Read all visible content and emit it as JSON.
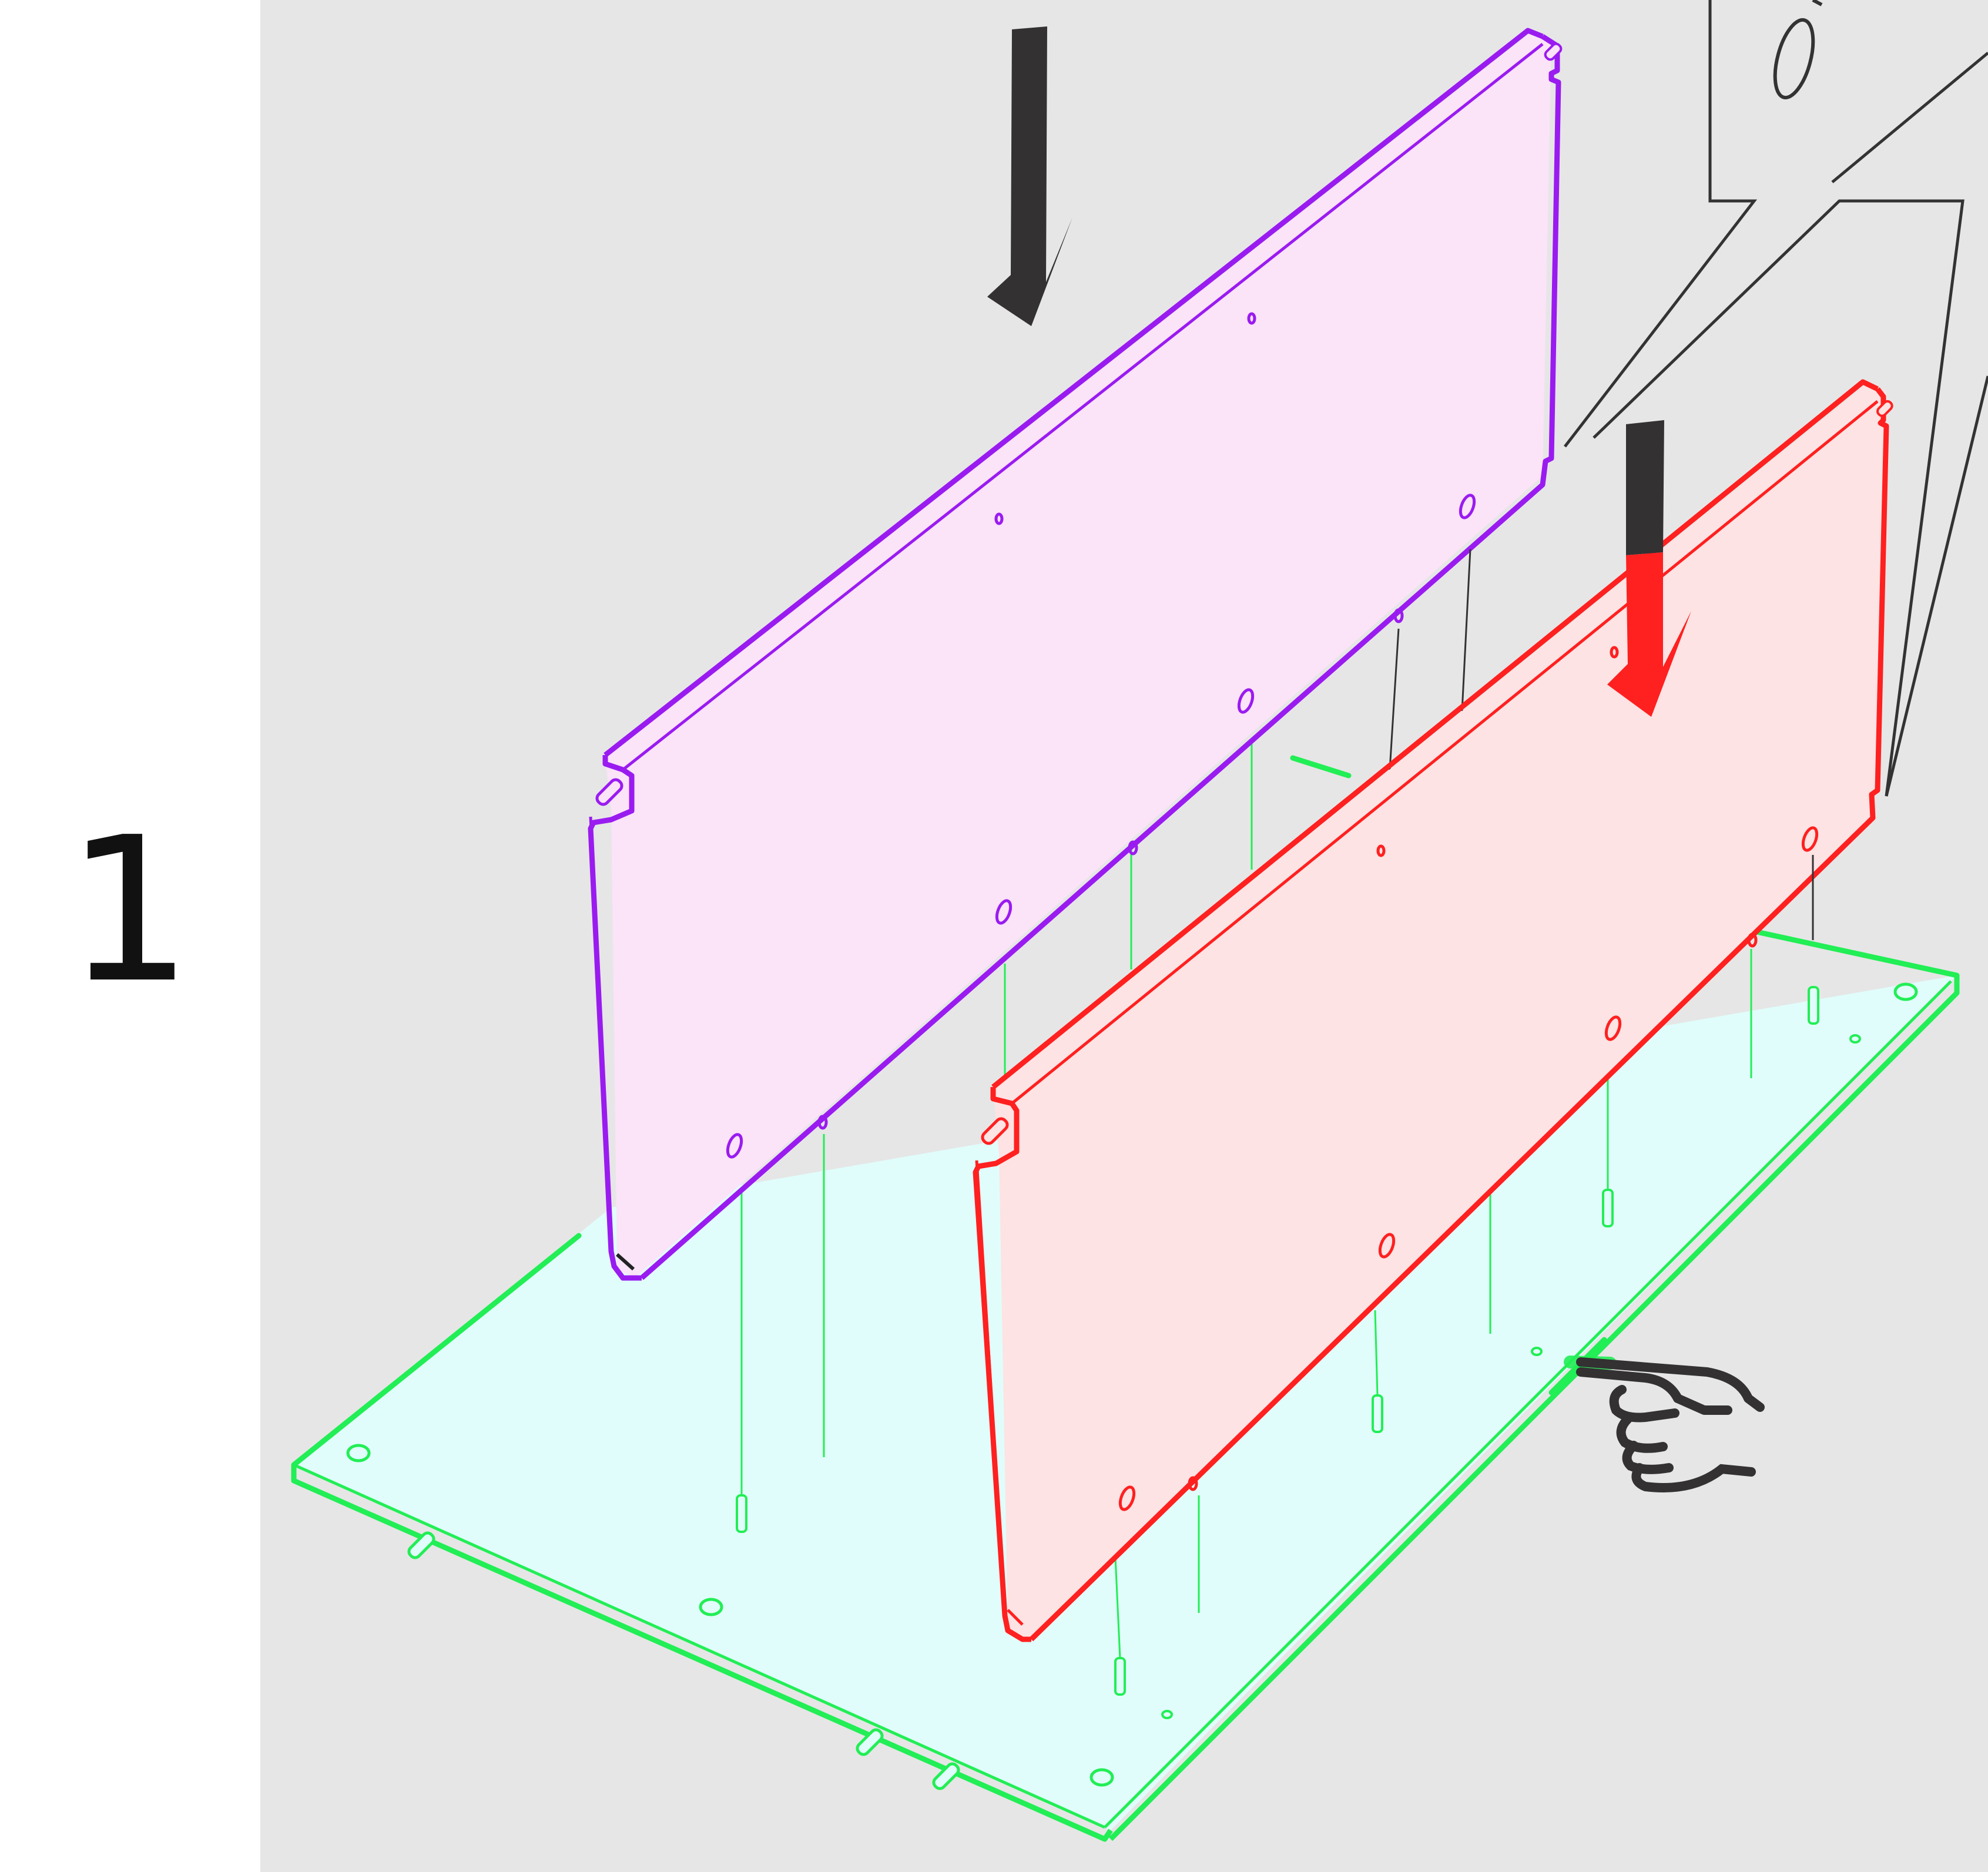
{
  "step": {
    "number": "1"
  },
  "colors": {
    "stage_background": "#e6e6e6",
    "base_panel_stroke": "#22ee55",
    "base_panel_fill": "#e0fdfb",
    "rear_panel_stroke": "#9a1bf0",
    "rear_panel_fill": "#fbe3f8",
    "front_panel_stroke": "#ff2020",
    "front_panel_fill": "#fde3e3",
    "arrow_dark": "#333132",
    "arrow_red": "#ff2020",
    "hint_lines": "#333333"
  },
  "icons": {
    "down_arrows": "arrow-down-icon",
    "hand": "pointing-hand-icon",
    "callout": "callout-bubble"
  }
}
